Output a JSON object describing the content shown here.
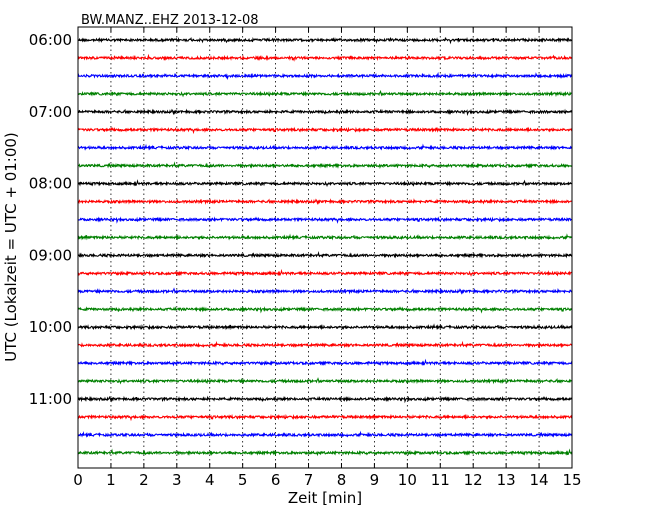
{
  "chart_data": {
    "type": "line",
    "title": "BW.MANZ..EHZ 2013-12-08",
    "xlabel": "Zeit  [min]",
    "ylabel": "UTC (Lokalzeit = UTC + 01:00)",
    "xlim": [
      0,
      15
    ],
    "x_ticks": [
      "0",
      "1",
      "2",
      "3",
      "4",
      "5",
      "6",
      "7",
      "8",
      "9",
      "10",
      "11",
      "12",
      "13",
      "14",
      "15"
    ],
    "y_tick_labels": [
      "06:00",
      "07:00",
      "08:00",
      "09:00",
      "10:00",
      "11:00"
    ],
    "grid": "vertical-dotted",
    "trace_interval_minutes": 15,
    "trace_colors": [
      "#000000",
      "#ff0000",
      "#0000ff",
      "#008000"
    ],
    "traces_count": 24,
    "first_trace_start": "06:00"
  }
}
